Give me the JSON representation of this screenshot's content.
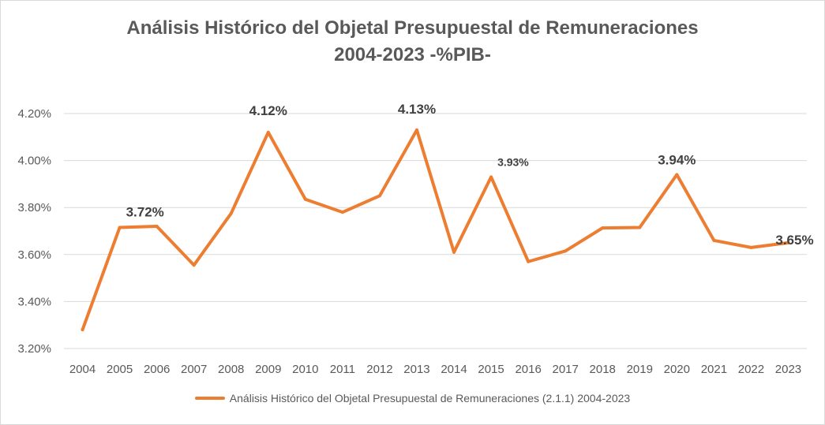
{
  "colors": {
    "series": "#ed7d31",
    "grid": "#d9d9d9",
    "text": "#595959",
    "label": "#404040"
  },
  "chart_data": {
    "type": "line",
    "title": [
      "Análisis Histórico del Objetal Presupuestal de Remuneraciones",
      "2004-2023 -%PIB-"
    ],
    "xlabel": "",
    "ylabel": "",
    "ylim": [
      0.032,
      0.042
    ],
    "yticks": [
      0.032,
      0.034,
      0.036,
      0.038,
      0.04,
      0.042
    ],
    "ytick_labels": [
      "3.20%",
      "3.40%",
      "3.60%",
      "3.80%",
      "4.00%",
      "4.20%"
    ],
    "grid": true,
    "legend_position": "bottom",
    "categories": [
      "2004",
      "2005",
      "2006",
      "2007",
      "2008",
      "2009",
      "2010",
      "2011",
      "2012",
      "2013",
      "2014",
      "2015",
      "2016",
      "2017",
      "2018",
      "2019",
      "2020",
      "2021",
      "2022",
      "2023"
    ],
    "series": [
      {
        "name": "Análisis Histórico del Objetal Presupuestal de Remuneraciones (2.1.1) 2004-2023",
        "values": [
          0.0328,
          0.03715,
          0.0372,
          0.03555,
          0.03775,
          0.0412,
          0.03835,
          0.0378,
          0.0385,
          0.0413,
          0.0361,
          0.0393,
          0.0357,
          0.03615,
          0.03713,
          0.03715,
          0.0394,
          0.0366,
          0.0363,
          0.0365
        ]
      }
    ],
    "data_labels": [
      {
        "index": 1,
        "text": "3.72%"
      },
      {
        "index": 5,
        "text": "4.12%"
      },
      {
        "index": 9,
        "text": "4.13%"
      },
      {
        "index": 11,
        "text": "3.93%"
      },
      {
        "index": 16,
        "text": "3.94%"
      },
      {
        "index": 19,
        "text": "3.65%"
      }
    ]
  }
}
